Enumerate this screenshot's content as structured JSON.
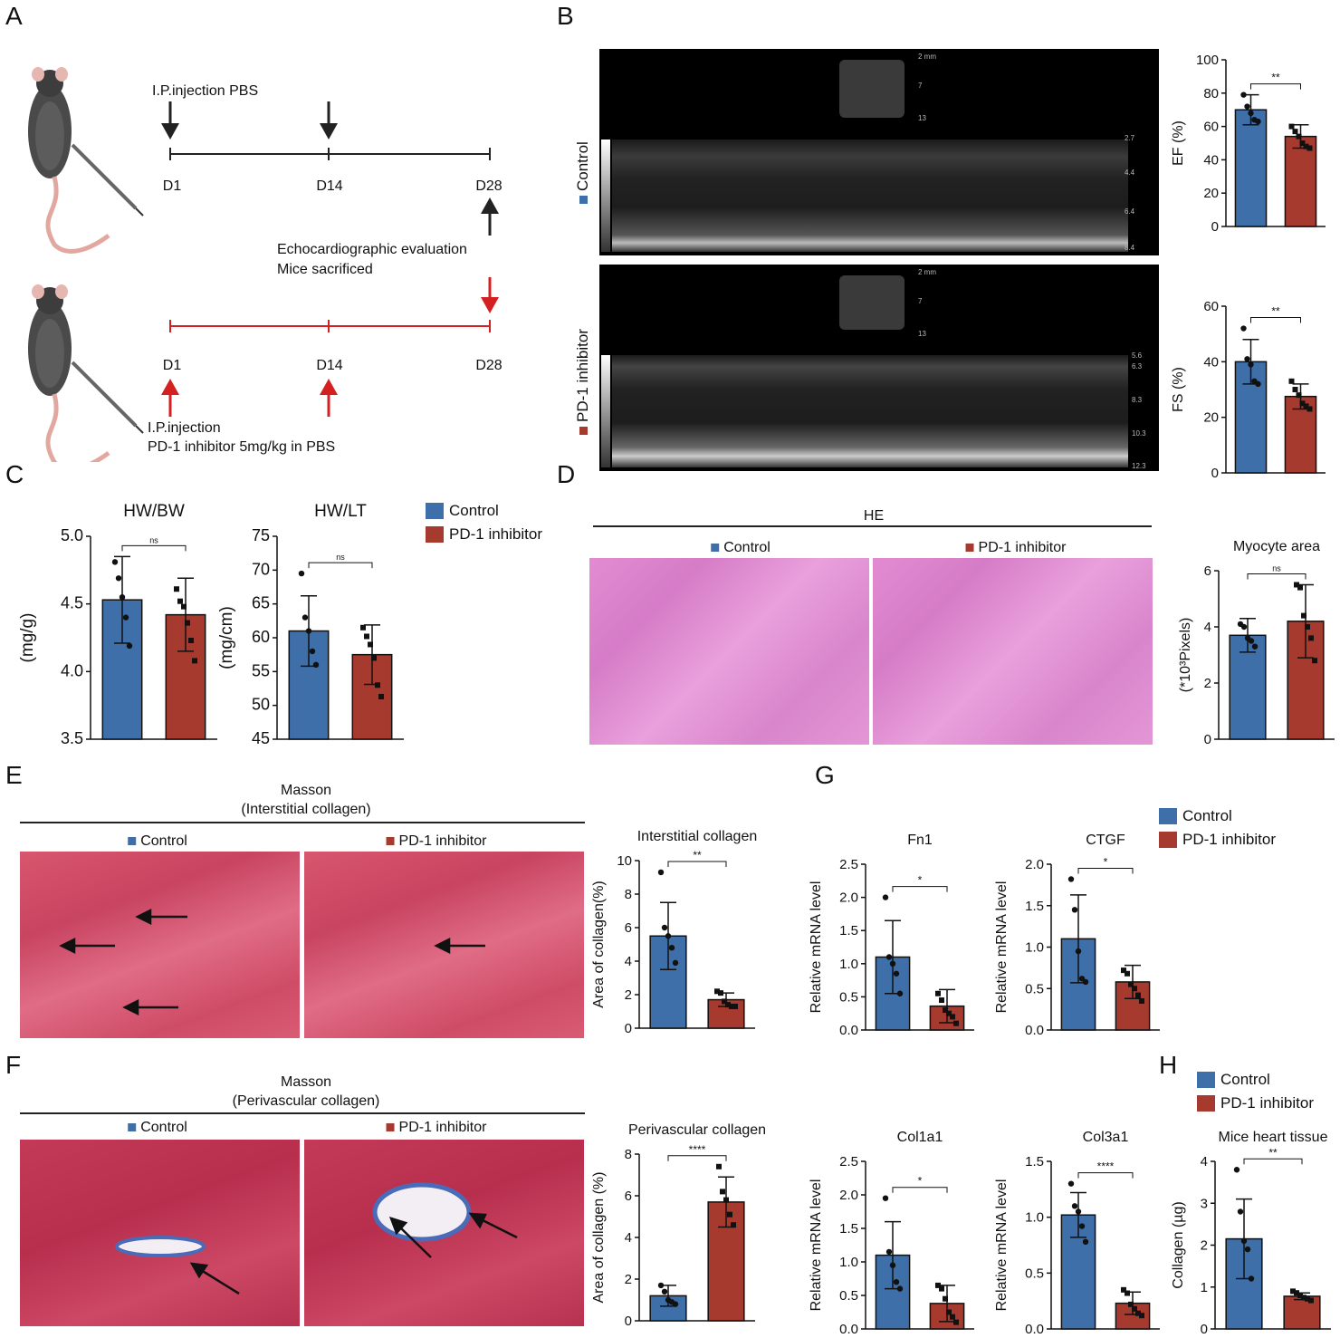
{
  "colors": {
    "control": "#3f6fa8",
    "pd1": "#a63a2e",
    "black": "#222222",
    "red": "#d42020"
  },
  "panels": {
    "A": "A",
    "B": "B",
    "C": "C",
    "D": "D",
    "E": "E",
    "F": "F",
    "G": "G",
    "H": "H"
  },
  "panelA": {
    "top_injection": "I.P.injection PBS",
    "days": [
      "D1",
      "D14",
      "D28"
    ],
    "echo_eval": "Echocardiographic evaluation",
    "sacrificed": "Mice sacrificed",
    "bottom_injection_1": "I.P.injection",
    "bottom_injection_2": "PD-1 inhibitor 5mg/kg in PBS"
  },
  "panelB": {
    "row_labels": [
      "Control",
      "PD-1 inhibitor"
    ],
    "scale_top": [
      "2 mm",
      "7",
      "13"
    ],
    "scale_control": [
      "2.7",
      "4.4",
      "6.4",
      "8.4"
    ],
    "scale_pd1": [
      "5.6",
      "6.3",
      "8.3",
      "10.3",
      "12.3"
    ]
  },
  "legend": {
    "control": "Control",
    "pd1": "PD-1 inhibitor"
  },
  "panelD": {
    "section_title": "HE",
    "left_label": "Control",
    "right_label": "PD-1 inhibitor"
  },
  "panelE": {
    "title_1": "Masson",
    "title_2": "(Interstitial collagen)",
    "left_label": "Control",
    "right_label": "PD-1 inhibitor"
  },
  "panelF": {
    "title_1": "Masson",
    "title_2": "(Perivascular collagen)",
    "left_label": "Control",
    "right_label": "PD-1 inhibitor"
  },
  "chart_data": [
    {
      "id": "ef",
      "type": "bar",
      "title": "",
      "ylabel": "EF (%)",
      "ylim": [
        0,
        100
      ],
      "yticks": [
        0,
        20,
        40,
        60,
        80,
        100
      ],
      "categories": [
        "Control",
        "PD-1 inhibitor"
      ],
      "values": [
        70,
        54
      ],
      "errors": [
        9,
        7
      ],
      "significance": "**",
      "points": [
        [
          79,
          72,
          68,
          64,
          63
        ],
        [
          60,
          57,
          54,
          50,
          48,
          47
        ]
      ]
    },
    {
      "id": "fs",
      "type": "bar",
      "title": "",
      "ylabel": "FS (%)",
      "ylim": [
        0,
        60
      ],
      "yticks": [
        0,
        20,
        40,
        60
      ],
      "categories": [
        "Control",
        "PD-1 inhibitor"
      ],
      "values": [
        40,
        27.5
      ],
      "errors": [
        8,
        4.5
      ],
      "significance": "**",
      "points": [
        [
          52,
          41,
          39,
          33,
          32
        ],
        [
          33,
          30,
          28,
          25,
          24,
          23
        ]
      ]
    },
    {
      "id": "hwbw",
      "type": "bar",
      "title": "HW/BW",
      "ylabel": "(mg/g)",
      "ylim": [
        3.5,
        5.0
      ],
      "yticks": [
        3.5,
        4.0,
        4.5,
        5.0
      ],
      "categories": [
        "Control",
        "PD-1 inhibitor"
      ],
      "values": [
        4.53,
        4.42
      ],
      "errors": [
        0.32,
        0.27
      ],
      "significance": "ns",
      "points": [
        [
          4.81,
          4.69,
          4.55,
          4.4,
          4.19
        ],
        [
          4.61,
          4.52,
          4.48,
          4.36,
          4.23,
          4.08
        ]
      ]
    },
    {
      "id": "hwlt",
      "type": "bar",
      "title": "HW/LT",
      "ylabel": "(mg/cm)",
      "ylim": [
        45,
        75
      ],
      "yticks": [
        45,
        50,
        55,
        60,
        65,
        70,
        75
      ],
      "categories": [
        "Control",
        "PD-1 inhibitor"
      ],
      "values": [
        61,
        57.5
      ],
      "errors": [
        5.2,
        4.4
      ],
      "significance": "ns",
      "points": [
        [
          69.5,
          63,
          61,
          58,
          56
        ],
        [
          61.5,
          60.2,
          59,
          57,
          53,
          51.3
        ]
      ]
    },
    {
      "id": "myocyte",
      "type": "bar",
      "title": "Myocyte area",
      "ylabel": "(*10³Pixels)",
      "ylim": [
        0,
        6
      ],
      "yticks": [
        0,
        2,
        4,
        6
      ],
      "categories": [
        "Control",
        "PD-1 inhibitor"
      ],
      "values": [
        3.7,
        4.2
      ],
      "errors": [
        0.6,
        1.3
      ],
      "significance": "ns",
      "points": [
        [
          4.1,
          4.0,
          3.6,
          3.5,
          3.3
        ],
        [
          5.5,
          5.4,
          4.4,
          4.0,
          3.6,
          2.8
        ]
      ]
    },
    {
      "id": "interstitial",
      "type": "bar",
      "title": "Interstitial collagen",
      "ylabel": "Area of collagen(%)",
      "ylim": [
        0,
        10
      ],
      "yticks": [
        0,
        2,
        4,
        6,
        8,
        10
      ],
      "categories": [
        "Control",
        "PD-1 inhibitor"
      ],
      "values": [
        5.5,
        1.7
      ],
      "errors": [
        2.0,
        0.4
      ],
      "significance": "**",
      "points": [
        [
          9.3,
          6.0,
          5.5,
          4.8,
          3.9
        ],
        [
          2.2,
          2.1,
          1.6,
          1.4,
          1.3,
          1.3
        ]
      ]
    },
    {
      "id": "perivascular",
      "type": "bar",
      "title": "Perivascular collagen",
      "ylabel": "Area of collagen (%)",
      "ylim": [
        0,
        8
      ],
      "yticks": [
        0,
        2,
        4,
        6,
        8
      ],
      "categories": [
        "Control",
        "PD-1 inhibitor"
      ],
      "values": [
        1.2,
        5.7
      ],
      "errors": [
        0.5,
        1.2
      ],
      "significance": "****",
      "points": [
        [
          1.7,
          1.4,
          1.0,
          0.9,
          0.8
        ],
        [
          7.4,
          6.2,
          5.8,
          5.1,
          4.6
        ]
      ]
    },
    {
      "id": "fn1",
      "type": "bar",
      "title": "Fn1",
      "ylabel": "Relative mRNA level",
      "ylim": [
        0,
        2.5
      ],
      "yticks": [
        0.0,
        0.5,
        1.0,
        1.5,
        2.0,
        2.5
      ],
      "categories": [
        "Control",
        "PD-1 inhibitor"
      ],
      "values": [
        1.1,
        0.36
      ],
      "errors": [
        0.55,
        0.25
      ],
      "significance": "*",
      "points": [
        [
          2.0,
          1.1,
          1.0,
          0.85,
          0.55
        ],
        [
          0.55,
          0.45,
          0.3,
          0.25,
          0.2,
          0.1
        ]
      ]
    },
    {
      "id": "ctgf",
      "type": "bar",
      "title": "CTGF",
      "ylabel": "Relative mRNA level",
      "ylim": [
        0,
        2.0
      ],
      "yticks": [
        0.0,
        0.5,
        1.0,
        1.5,
        2.0
      ],
      "categories": [
        "Control",
        "PD-1 inhibitor"
      ],
      "values": [
        1.1,
        0.58
      ],
      "errors": [
        0.53,
        0.2
      ],
      "significance": "*",
      "points": [
        [
          1.82,
          1.45,
          0.95,
          0.62,
          0.58
        ],
        [
          0.72,
          0.68,
          0.55,
          0.5,
          0.42,
          0.35
        ]
      ]
    },
    {
      "id": "col1a1",
      "type": "bar",
      "title": "Col1a1",
      "ylabel": "Relative mRNA level",
      "ylim": [
        0,
        2.5
      ],
      "yticks": [
        0.0,
        0.5,
        1.0,
        1.5,
        2.0,
        2.5
      ],
      "categories": [
        "Control",
        "PD-1 inhibitor"
      ],
      "values": [
        1.1,
        0.38
      ],
      "errors": [
        0.5,
        0.27
      ],
      "significance": "*",
      "points": [
        [
          1.95,
          1.15,
          0.95,
          0.7,
          0.6
        ],
        [
          0.65,
          0.6,
          0.45,
          0.25,
          0.18,
          0.1
        ]
      ]
    },
    {
      "id": "col3a1",
      "type": "bar",
      "title": "Col3a1",
      "ylabel": "Relative mRNA level",
      "ylim": [
        0,
        1.5
      ],
      "yticks": [
        0.0,
        0.5,
        1.0,
        1.5
      ],
      "categories": [
        "Control",
        "PD-1 inhibitor"
      ],
      "values": [
        1.02,
        0.23
      ],
      "errors": [
        0.2,
        0.1
      ],
      "significance": "****",
      "points": [
        [
          1.3,
          1.1,
          1.05,
          0.92,
          0.78
        ],
        [
          0.35,
          0.32,
          0.22,
          0.18,
          0.14,
          0.12
        ]
      ]
    },
    {
      "id": "collagen",
      "type": "bar",
      "title": "Mice heart tissue",
      "ylabel": "Collagen (µg)",
      "ylim": [
        0,
        4
      ],
      "yticks": [
        0,
        1,
        2,
        3,
        4
      ],
      "categories": [
        "Control",
        "PD-1 inhibitor"
      ],
      "values": [
        2.15,
        0.78
      ],
      "errors": [
        0.95,
        0.08
      ],
      "significance": "**",
      "points": [
        [
          3.8,
          2.8,
          2.1,
          1.9,
          1.2
        ],
        [
          0.9,
          0.86,
          0.8,
          0.75,
          0.72,
          0.68
        ]
      ]
    }
  ]
}
